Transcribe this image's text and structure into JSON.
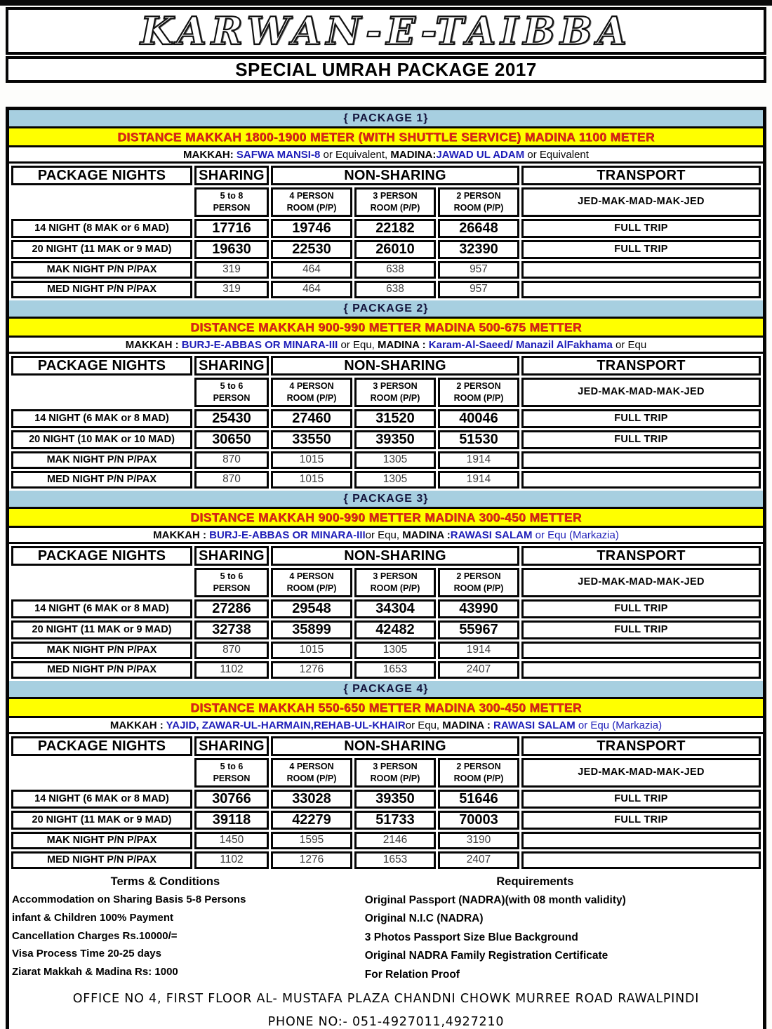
{
  "header": {
    "title": "KARWAN-E-TAIBBA",
    "subtitle": "SPECIAL UMRAH PACKAGE 2017"
  },
  "shared": {
    "col_package_nights": "PACKAGE NIGHTS",
    "col_sharing": "SHARING",
    "col_non_sharing": "NON-SHARING",
    "col_transport": "TRANSPORT",
    "sub4": "4 PERSON",
    "sub3": "3 PERSON",
    "sub2": "2 PERSON",
    "person": "PERSON",
    "room_pp": "ROOM (P/P)",
    "route": "JED-MAK-MAD-MAK-JED"
  },
  "packages": [
    {
      "name": "{ PACKAGE 1}",
      "distance": "DISTANCE MAKKAH  1800-1900 METER (WITH SHUTTLE SERVICE)   MADINA 1100 METER",
      "hotel_segments": [
        {
          "t": "MAKKAH: ",
          "c": "k"
        },
        {
          "t": "SAFWA MANSI-8",
          "c": "b"
        },
        {
          "t": "  or Equivalent, ",
          "c": "kn"
        },
        {
          "t": "MADINA:",
          "c": "k"
        },
        {
          "t": "JAWAD UL ADAM",
          "c": "b"
        },
        {
          "t": " or Equivalent",
          "c": "kn"
        }
      ],
      "sharing_size": "5 to 8",
      "rows": [
        {
          "label": "14 NIGHT (8 MAK or 6 MAD)",
          "values": [
            "17716",
            "19746",
            "22182",
            "26648"
          ],
          "transport": "FULL TRIP"
        },
        {
          "label": "20 NIGHT (11 MAK or 9 MAD)",
          "values": [
            "19630",
            "22530",
            "26010",
            "32390"
          ],
          "transport": "FULL TRIP"
        },
        {
          "label": "MAK NIGHT P/N P/PAX",
          "values": [
            "319",
            "464",
            "638",
            "957"
          ],
          "transport": ""
        },
        {
          "label": "MED NIGHT P/N P/PAX",
          "values": [
            "319",
            "464",
            "638",
            "957"
          ],
          "transport": ""
        }
      ]
    },
    {
      "name": "{ PACKAGE 2}",
      "distance": "DISTANCE MAKKAH  900-990 METTER MADINA 500-675 METTER",
      "hotel_segments": [
        {
          "t": "MAKKAH : ",
          "c": "k"
        },
        {
          "t": "BURJ-E-ABBAS OR MINARA-III",
          "c": "b"
        },
        {
          "t": " or Equ,  ",
          "c": "kn"
        },
        {
          "t": "MADINA : ",
          "c": "k"
        },
        {
          "t": "Karam-Al-Saeed/ Manazil AlFakhama",
          "c": "b"
        },
        {
          "t": " or Equ",
          "c": "kn"
        }
      ],
      "sharing_size": "5 to 6",
      "rows": [
        {
          "label": "14 NIGHT (6 MAK or 8 MAD)",
          "values": [
            "25430",
            "27460",
            "31520",
            "40046"
          ],
          "transport": "FULL TRIP"
        },
        {
          "label": "20 NIGHT (10 MAK or 10 MAD)",
          "values": [
            "30650",
            "33550",
            "39350",
            "51530"
          ],
          "transport": "FULL TRIP"
        },
        {
          "label": "MAK NIGHT P/N P/PAX",
          "values": [
            "870",
            "1015",
            "1305",
            "1914"
          ],
          "transport": ""
        },
        {
          "label": "MED NIGHT P/N P/PAX",
          "values": [
            "870",
            "1015",
            "1305",
            "1914"
          ],
          "transport": ""
        }
      ]
    },
    {
      "name": "{ PACKAGE 3}",
      "distance": "DISTANCE MAKKAH  900-990 METTER MADINA 300-450 METTER",
      "hotel_segments": [
        {
          "t": "MAKKAH : ",
          "c": "k"
        },
        {
          "t": "BURJ-E-ABBAS OR MINARA-III",
          "c": "b"
        },
        {
          "t": "or Equ,  ",
          "c": "kn"
        },
        {
          "t": "MADINA :",
          "c": "k"
        },
        {
          "t": "RAWASI SALAM",
          "c": "b"
        },
        {
          "t": " or Equ (Markazia)",
          "c": "bn"
        }
      ],
      "sharing_size": "5 to 6",
      "rows": [
        {
          "label": "14 NIGHT (6 MAK or 8 MAD)",
          "values": [
            "27286",
            "29548",
            "34304",
            "43990"
          ],
          "transport": "FULL TRIP"
        },
        {
          "label": "20 NIGHT (11 MAK or 9 MAD)",
          "values": [
            "32738",
            "35899",
            "42482",
            "55967"
          ],
          "transport": "FULL TRIP"
        },
        {
          "label": "MAK NIGHT P/N P/PAX",
          "values": [
            "870",
            "1015",
            "1305",
            "1914"
          ],
          "transport": ""
        },
        {
          "label": "MED NIGHT P/N P/PAX",
          "values": [
            "1102",
            "1276",
            "1653",
            "2407"
          ],
          "transport": ""
        }
      ]
    },
    {
      "name": "{ PACKAGE 4}",
      "distance": "DISTANCE MAKKAH  550-650 METTER MADINA 300-450 METTER",
      "hotel_segments": [
        {
          "t": "MAKKAH : ",
          "c": "k"
        },
        {
          "t": "YAJID, ZAWAR-UL-HARMAIN,REHAB-UL-KHAIR",
          "c": "b"
        },
        {
          "t": "or Equ,  ",
          "c": "kn"
        },
        {
          "t": "MADINA : ",
          "c": "k"
        },
        {
          "t": "RAWASI SALAM",
          "c": "b"
        },
        {
          "t": " or Equ (Markazia)",
          "c": "bn"
        }
      ],
      "sharing_size": "5 to 6",
      "rows": [
        {
          "label": "14 NIGHT (6 MAK or 8 MAD)",
          "values": [
            "30766",
            "33028",
            "39350",
            "51646"
          ],
          "transport": "FULL TRIP"
        },
        {
          "label": "20 NIGHT (11 MAK or 9 MAD)",
          "values": [
            "39118",
            "42279",
            "51733",
            "70003"
          ],
          "transport": "FULL TRIP"
        },
        {
          "label": "MAK NIGHT P/N P/PAX",
          "values": [
            "1450",
            "1595",
            "2146",
            "3190"
          ],
          "transport": ""
        },
        {
          "label": "MED NIGHT P/N P/PAX",
          "values": [
            "1102",
            "1276",
            "1653",
            "2407"
          ],
          "transport": ""
        }
      ]
    }
  ],
  "terms": {
    "heading": "Terms & Conditions",
    "items": [
      "Accommodation on Sharing Basis 5-8  Persons",
      "infant & Children  100% Payment",
      "Cancellation Charges Rs.10000/=",
      "Visa Process Time 20-25 days",
      "Ziarat Makkah & Madina Rs: 1000"
    ]
  },
  "requirements": {
    "heading": "Requirements",
    "items": [
      "Original Passport (NADRA)(with 08 month validity)",
      "Original N.I.C (NADRA)",
      "3 Photos Passport Size Blue Background",
      "Original NADRA Family Registration Certificate",
      "For Relation Proof"
    ]
  },
  "footer": {
    "address": "OFFICE NO 4, FIRST FLOOR AL- MUSTAFA PLAZA CHANDNI CHOWK MURREE ROAD RAWALPINDI",
    "phone": "PHONE NO:- 051-4927011,4927210"
  },
  "colors": {
    "package_bar_bg": "#a7cfe0",
    "distance_bg": "#ffff00",
    "distance_text": "#e02517",
    "hotel_name_text": "#1e1eb8",
    "border": "#050505"
  }
}
